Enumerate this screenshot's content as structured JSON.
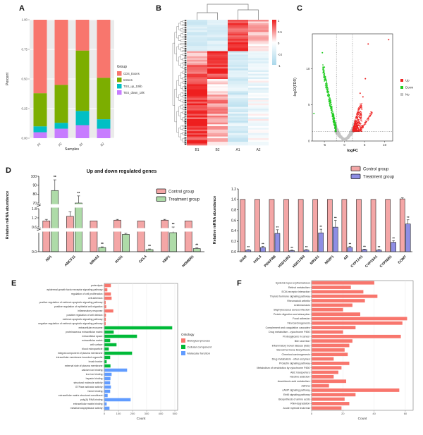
{
  "panels": {
    "a": {
      "label": "A"
    },
    "b": {
      "label": "B"
    },
    "c": {
      "label": "C"
    },
    "d": {
      "label": "D"
    },
    "e": {
      "label": "E"
    },
    "f": {
      "label": "F"
    }
  },
  "colors": {
    "ggplot_panel_bg": "#EBEBEB",
    "heat_red": "#EE1E1E",
    "heat_blue": "#AAD8EB",
    "volcano_up": "#EE2222",
    "volcano_down": "#22CC22",
    "volcano_no": "#C4C4C4",
    "control_pink": "#F4A6A6",
    "treatment_green": "#AEDBA8",
    "treatment_blue": "#8E8EE4",
    "kegg_bar": "#F8766D"
  },
  "chart_data": [
    {
      "id": "A",
      "type": "bar",
      "stacked": true,
      "xlabel": "Samples",
      "ylabel": "Percent",
      "categories": [
        "A1",
        "A2",
        "B1",
        "B2"
      ],
      "yticks": [
        "0.00",
        "0.25",
        "0.50",
        "0.75",
        "1.00"
      ],
      "legend_title": "Group",
      "series": [
        {
          "name": "CDS_Exons",
          "color": "#F8766D",
          "values": [
            0.62,
            0.55,
            0.26,
            0.49
          ]
        },
        {
          "name": "Introns",
          "color": "#7CAE00",
          "values": [
            0.28,
            0.32,
            0.51,
            0.35
          ]
        },
        {
          "name": "TSS_up_10kb",
          "color": "#00BFC4",
          "values": [
            0.05,
            0.05,
            0.12,
            0.08
          ]
        },
        {
          "name": "TES_down_10kb",
          "color": "#C77CFF",
          "values": [
            0.05,
            0.08,
            0.11,
            0.08
          ]
        }
      ]
    },
    {
      "id": "B",
      "type": "heatmap",
      "columns": [
        "B1",
        "B2",
        "A1",
        "A2"
      ],
      "colorbar_ticks": [
        "1",
        "0.5",
        "0",
        "-0.5",
        "-1"
      ],
      "value_range": [
        -1,
        1
      ],
      "row_groups": [
        {
          "rows": 13,
          "values": [
            -0.45,
            -0.5,
            0.75,
            0.35
          ],
          "jitter": 0.35
        },
        {
          "rows": 5,
          "values": [
            -0.5,
            -0.45,
            1.0,
            0.15
          ],
          "jitter": 0.3
        },
        {
          "rows": 7,
          "values": [
            0.3,
            1.0,
            -0.5,
            -0.35
          ],
          "jitter": 0.35
        },
        {
          "rows": 9,
          "values": [
            0.65,
            0.85,
            -0.5,
            -0.3
          ],
          "jitter": 0.4
        },
        {
          "rows": 9,
          "values": [
            0.95,
            0.25,
            -0.45,
            -0.2
          ],
          "jitter": 0.5
        },
        {
          "rows": 13,
          "values": [
            0.95,
            0.45,
            -0.5,
            -0.15
          ],
          "jitter": 0.45
        },
        {
          "rows": 16,
          "values": [
            0.8,
            0.3,
            -0.45,
            -0.1
          ],
          "jitter": 0.5
        }
      ]
    },
    {
      "id": "C",
      "type": "scatter",
      "xlabel": "logFC",
      "ylabel": "-log10(FDR)",
      "xticks": [
        -5,
        0,
        5,
        10
      ],
      "yticks": [
        0,
        5,
        10
      ],
      "xlim": [
        -8,
        12
      ],
      "ylim": [
        0,
        14.8
      ],
      "vlines": [
        -2,
        2
      ],
      "hline": 1.3,
      "legend": [
        {
          "label": "Up",
          "color": "#EE2222"
        },
        {
          "label": "Down",
          "color": "#22CC22"
        },
        {
          "label": "No",
          "color": "#C4C4C4"
        }
      ],
      "n_no": 900,
      "n_up": 560,
      "n_down": 380,
      "outliers_up": [
        [
          5.9,
          13.4
        ],
        [
          11.0,
          14.0
        ],
        [
          5.2,
          8.6
        ],
        [
          3.9,
          6.6
        ],
        [
          4.6,
          6.1
        ]
      ],
      "outliers_down": [
        [
          -5.5,
          12.2
        ],
        [
          -7.6,
          3.8
        ],
        [
          -5.0,
          10.2
        ]
      ]
    },
    {
      "id": "D-left",
      "type": "bar",
      "grouped": true,
      "title": "Up and down regulated genes",
      "ylabel": "Relative mRNA abundance",
      "categories": [
        "ND1",
        "AMCF11",
        "NR4A3",
        "HAS1",
        "CCL4",
        "XBP1",
        "HOMER1"
      ],
      "axis_segments": [
        {
          "ticks": [
            "0.0"
          ]
        },
        {
          "ticks": [
            "0.6",
            "1.2",
            "1.8"
          ]
        },
        {
          "ticks": [
            "70",
            "80",
            "90",
            "100"
          ]
        }
      ],
      "series": [
        {
          "name": "Control group",
          "color": "#F4A6A6",
          "values": [
            1.0,
            1.3,
            1.0,
            1.05,
            1.0,
            1.05,
            1.0
          ],
          "errors": [
            0.1,
            0.3,
            0.0,
            0.05,
            0.0,
            0.05,
            0.0
          ],
          "sig": [
            "",
            "",
            "",
            "",
            "",
            "",
            ""
          ]
        },
        {
          "name": "Treatment group",
          "color": "#AEDBA8",
          "values": [
            84,
            70,
            0.12,
            0.5,
            0.06,
            0.55,
            0.09
          ],
          "errors": [
            12,
            8,
            0.02,
            0.03,
            0.02,
            0.03,
            0.02
          ],
          "sig": [
            "**",
            "**",
            "**",
            "**",
            "**",
            "**",
            "**"
          ]
        }
      ]
    },
    {
      "id": "D-right",
      "type": "bar",
      "grouped": true,
      "ylabel": "Relative mRNA abundance",
      "yticks": [
        "0.0",
        "0.2",
        "0.4",
        "0.6",
        "0.8",
        "1.0",
        "1.2"
      ],
      "ylim": [
        0,
        1.2
      ],
      "categories": [
        "StAR",
        "InSL3",
        "PDGFRB",
        "HSD11B2",
        "HSD17B3",
        "NR5A1",
        "NR2F1",
        "AR",
        "CYP17A1",
        "CYP19A1",
        "CYP26B1",
        "COMT"
      ],
      "series": [
        {
          "name": "Control group",
          "color": "#F4A6A6",
          "values": [
            1.0,
            1.0,
            1.0,
            1.0,
            1.0,
            1.0,
            1.0,
            1.0,
            1.0,
            1.0,
            1.0,
            1.01
          ],
          "errors": [
            0,
            0,
            0,
            0,
            0,
            0,
            0,
            0,
            0,
            0,
            0,
            0.02
          ],
          "sig": [
            "",
            "",
            "",
            "",
            "",
            "",
            "",
            "",
            "",
            "",
            "",
            ""
          ]
        },
        {
          "name": "Treatment group",
          "color": "#8E8EE4",
          "values": [
            0.03,
            0.08,
            0.35,
            0.02,
            0.03,
            0.36,
            0.47,
            0.08,
            0.04,
            0.03,
            0.18,
            0.53
          ],
          "errors": [
            0.01,
            0.02,
            0.07,
            0.01,
            0.01,
            0.07,
            0.13,
            0.02,
            0.01,
            0.01,
            0.03,
            0.08
          ],
          "sig": [
            "**",
            "**",
            "**",
            "**",
            "**",
            "**",
            "**",
            "**",
            "**",
            "**",
            "**",
            "**"
          ]
        }
      ]
    },
    {
      "id": "E",
      "type": "bar_h",
      "xlabel": "Count",
      "xticks": [
        0,
        100,
        200,
        300,
        400,
        500
      ],
      "xlim": [
        0,
        520
      ],
      "legend_title": "Ontology",
      "groups": [
        {
          "name": "Biological process",
          "color": "#F8766D"
        },
        {
          "name": "Cellular component",
          "color": "#00BA38"
        },
        {
          "name": "Molecular function",
          "color": "#619CFF"
        }
      ],
      "items": [
        {
          "label": "proteolysis",
          "group": 0,
          "value": 45
        },
        {
          "label": "epidermal growth factor receptor signaling pathway",
          "group": 0,
          "value": 20
        },
        {
          "label": "regulation of cell proliferation",
          "group": 0,
          "value": 45
        },
        {
          "label": "cell adhesion",
          "group": 0,
          "value": 50
        },
        {
          "label": "positive regulation of extrinsic apoptotic signaling pathway",
          "group": 0,
          "value": 8
        },
        {
          "label": "positive regulation of epithelial cell migration",
          "group": 0,
          "value": 12
        },
        {
          "label": "inflammatory response",
          "group": 0,
          "value": 62
        },
        {
          "label": "positive regulation of cell division",
          "group": 0,
          "value": 10
        },
        {
          "label": "extrinsic apoptotic signaling pathway",
          "group": 0,
          "value": 9
        },
        {
          "label": "negative regulation of extrinsic apoptotic signaling pathway",
          "group": 0,
          "value": 8
        },
        {
          "label": "extracellular exosome",
          "group": 1,
          "value": 480
        },
        {
          "label": "proteinaceous extracellular matrix",
          "group": 1,
          "value": 65
        },
        {
          "label": "extracellular space",
          "group": 1,
          "value": 230
        },
        {
          "label": "extracellular matrix",
          "group": 1,
          "value": 40
        },
        {
          "label": "cell surface",
          "group": 1,
          "value": 85
        },
        {
          "label": "blood microparticle",
          "group": 1,
          "value": 30
        },
        {
          "label": "integral component of plasma membrane",
          "group": 1,
          "value": 195
        },
        {
          "label": "intracellular membrane-bounded organelle",
          "group": 1,
          "value": 40
        },
        {
          "label": "brush border",
          "group": 1,
          "value": 15
        },
        {
          "label": "external side of plasma membrane",
          "group": 1,
          "value": 42
        },
        {
          "label": "calcium ion binding",
          "group": 2,
          "value": 160
        },
        {
          "label": "iron ion binding",
          "group": 2,
          "value": 50
        },
        {
          "label": "heparin binding",
          "group": 2,
          "value": 42
        },
        {
          "label": "structural molecule activity",
          "group": 2,
          "value": 40
        },
        {
          "label": "GTPase activator activity",
          "group": 2,
          "value": 45
        },
        {
          "label": "heme binding",
          "group": 2,
          "value": 40
        },
        {
          "label": "extracellular matrix structural constituent",
          "group": 2,
          "value": 22
        },
        {
          "label": "poly(A) RNA binding",
          "group": 2,
          "value": 185
        },
        {
          "label": "extracellular matrix binding",
          "group": 2,
          "value": 15
        },
        {
          "label": "metalloendopeptidase activity",
          "group": 2,
          "value": 35
        }
      ]
    },
    {
      "id": "F",
      "type": "bar_h",
      "xlabel": "Count",
      "xticks": [
        0,
        20,
        40,
        60
      ],
      "xlim": [
        0,
        65
      ],
      "bar_color": "#F8766D",
      "items": [
        {
          "label": "Systemic lupus erythematosus",
          "value": 40
        },
        {
          "label": "Retinol metabolism",
          "value": 25
        },
        {
          "label": "ECM-receptor interaction",
          "value": 33
        },
        {
          "label": "Thyroid hormone signaling pathway",
          "value": 42
        },
        {
          "label": "Rheumatoid arthritis",
          "value": 34
        },
        {
          "label": "Leishmaniasis",
          "value": 26
        },
        {
          "label": "Staphylococcus aureus infection",
          "value": 20
        },
        {
          "label": "Protein digestion and absorption",
          "value": 31
        },
        {
          "label": "Focal adhesion",
          "value": 61
        },
        {
          "label": "Viral carcinogenesis",
          "value": 58
        },
        {
          "label": "Complement and coagulation cascades",
          "value": 28
        },
        {
          "label": "Drug metabolism - cytochrome P450",
          "value": 20
        },
        {
          "label": "Proteoglycans in cancer",
          "value": 57
        },
        {
          "label": "Bile secretion",
          "value": 26
        },
        {
          "label": "Inflammatory bowel disease (IBD)",
          "value": 24
        },
        {
          "label": "Steroid hormone biosynthesis",
          "value": 21
        },
        {
          "label": "Chemical carcinogenesis",
          "value": 23
        },
        {
          "label": "Drug metabolism - other enzymes",
          "value": 14
        },
        {
          "label": "Prolactin signaling pathway",
          "value": 24
        },
        {
          "label": "Metabolism of xenobiotics by cytochrome P450",
          "value": 19
        },
        {
          "label": "ABC transporters",
          "value": 17
        },
        {
          "label": "Nicotine addiction",
          "value": 14
        },
        {
          "label": "Arachidonic acid metabolism",
          "value": 22
        },
        {
          "label": "Asthma",
          "value": 11
        },
        {
          "label": "cAMP signaling pathway",
          "value": 56
        },
        {
          "label": "ErbB signaling pathway",
          "value": 28
        },
        {
          "label": "Biosynthesis of amino acids",
          "value": 21
        },
        {
          "label": "RNA degradation",
          "value": 24
        },
        {
          "label": "Acute myeloid leukemia",
          "value": 19
        }
      ]
    }
  ]
}
